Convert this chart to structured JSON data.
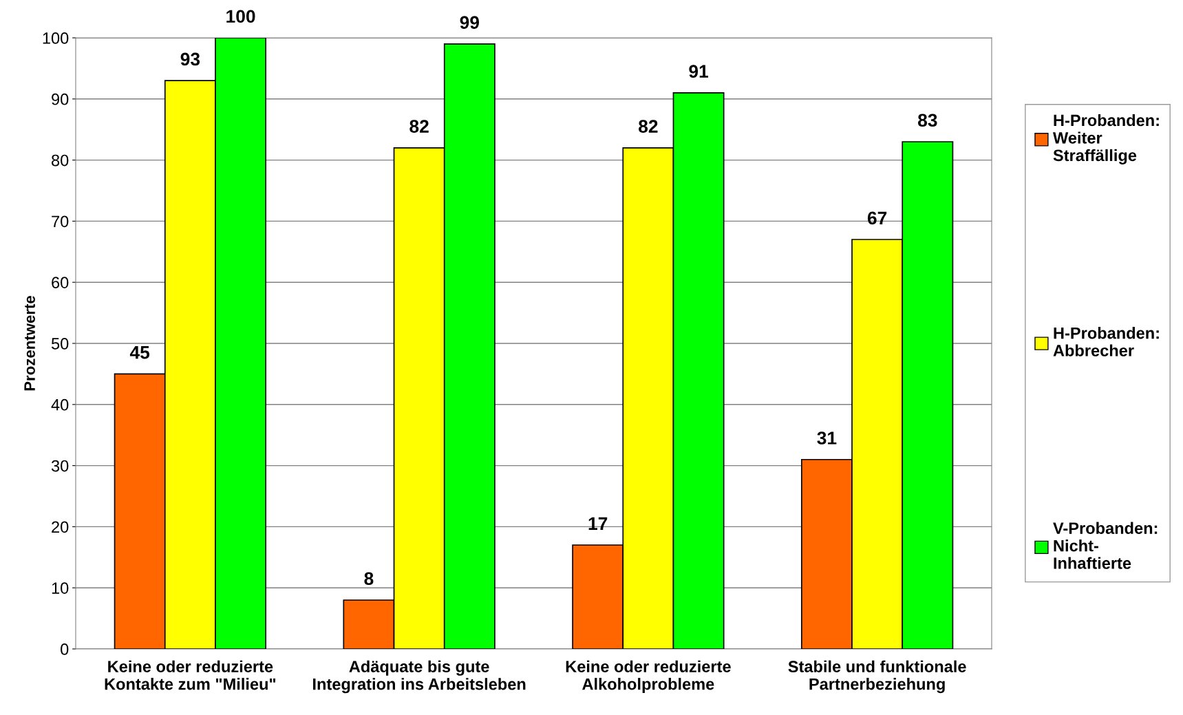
{
  "chart_data": {
    "type": "bar",
    "ylabel": "Prozentwerte",
    "categories": [
      "Keine oder reduzierte\nKontakte zum \"Milieu\"",
      "Adäquate bis gute\nIntegration ins Arbeitsleben",
      "Keine oder reduzierte\nAlkoholprobleme",
      "Stabile und funktionale\nPartnerbeziehung"
    ],
    "series": [
      {
        "name": "H-Probanden:\nWeiter\nStraffällige",
        "color": "#ff6600",
        "values": [
          45,
          8,
          17,
          31
        ]
      },
      {
        "name": "H-Probanden:\nAbbrecher",
        "color": "#ffff00",
        "values": [
          93,
          82,
          82,
          67
        ]
      },
      {
        "name": "V-Probanden:\nNicht-\nInhaftierte",
        "color": "#00ff00",
        "values": [
          100,
          99,
          91,
          83
        ]
      }
    ],
    "ylim": [
      0,
      100
    ],
    "yticks": [
      0,
      10,
      20,
      30,
      40,
      50,
      60,
      70,
      80,
      90,
      100
    ],
    "grid": "y",
    "legend": "right",
    "data_labels": true
  }
}
